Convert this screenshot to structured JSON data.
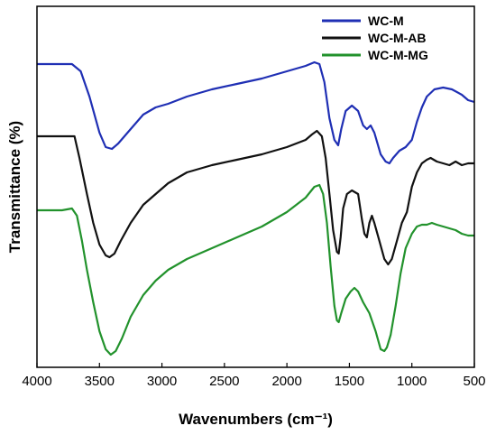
{
  "chart_data": {
    "type": "line",
    "title": "",
    "xlabel": "Wavenumbers (cm⁻¹)",
    "ylabel": "Transmittance (%)",
    "xlim": [
      4000,
      500
    ],
    "x_reversed": true,
    "ylim": [
      0,
      100
    ],
    "y_ticks_shown": false,
    "x_ticks": [
      4000,
      3500,
      3000,
      2500,
      2000,
      1500,
      1000,
      500
    ],
    "grid": false,
    "legend_position": "top-right",
    "series": [
      {
        "name": "WC-M",
        "color": "#1f2fb4",
        "points": [
          [
            4000,
            84
          ],
          [
            3800,
            84
          ],
          [
            3720,
            84
          ],
          [
            3650,
            82
          ],
          [
            3580,
            75
          ],
          [
            3500,
            65
          ],
          [
            3450,
            61
          ],
          [
            3400,
            60.5
          ],
          [
            3350,
            62
          ],
          [
            3250,
            66
          ],
          [
            3150,
            70
          ],
          [
            3050,
            72
          ],
          [
            2950,
            73
          ],
          [
            2800,
            75
          ],
          [
            2600,
            77
          ],
          [
            2400,
            78.5
          ],
          [
            2200,
            80
          ],
          [
            2000,
            82
          ],
          [
            1850,
            83.5
          ],
          [
            1780,
            84.5
          ],
          [
            1740,
            84
          ],
          [
            1700,
            79
          ],
          [
            1660,
            69
          ],
          [
            1620,
            63
          ],
          [
            1590,
            61.5
          ],
          [
            1565,
            66
          ],
          [
            1530,
            71
          ],
          [
            1480,
            72.5
          ],
          [
            1430,
            71
          ],
          [
            1390,
            67
          ],
          [
            1360,
            66
          ],
          [
            1330,
            67
          ],
          [
            1300,
            65
          ],
          [
            1250,
            59
          ],
          [
            1210,
            57
          ],
          [
            1180,
            56.5
          ],
          [
            1150,
            58
          ],
          [
            1100,
            60
          ],
          [
            1050,
            61
          ],
          [
            1000,
            63
          ],
          [
            960,
            68
          ],
          [
            920,
            72
          ],
          [
            880,
            75
          ],
          [
            820,
            77
          ],
          [
            750,
            77.5
          ],
          [
            680,
            77
          ],
          [
            600,
            75.5
          ],
          [
            550,
            74
          ],
          [
            500,
            73.5
          ]
        ]
      },
      {
        "name": "WC-M-AB",
        "color": "#111111",
        "points": [
          [
            4000,
            64
          ],
          [
            3800,
            64
          ],
          [
            3700,
            64
          ],
          [
            3660,
            58
          ],
          [
            3600,
            48
          ],
          [
            3550,
            40
          ],
          [
            3500,
            34
          ],
          [
            3450,
            31
          ],
          [
            3420,
            30.5
          ],
          [
            3380,
            31.5
          ],
          [
            3330,
            35
          ],
          [
            3250,
            40
          ],
          [
            3150,
            45
          ],
          [
            3050,
            48
          ],
          [
            2950,
            51
          ],
          [
            2800,
            54
          ],
          [
            2600,
            56
          ],
          [
            2400,
            57.5
          ],
          [
            2200,
            59
          ],
          [
            2000,
            61
          ],
          [
            1850,
            63
          ],
          [
            1800,
            64.5
          ],
          [
            1760,
            65.5
          ],
          [
            1720,
            64
          ],
          [
            1690,
            58
          ],
          [
            1660,
            48
          ],
          [
            1630,
            38
          ],
          [
            1600,
            32
          ],
          [
            1585,
            31.5
          ],
          [
            1570,
            36
          ],
          [
            1550,
            44
          ],
          [
            1520,
            48
          ],
          [
            1480,
            49
          ],
          [
            1430,
            48
          ],
          [
            1400,
            41
          ],
          [
            1380,
            37
          ],
          [
            1360,
            36
          ],
          [
            1340,
            40
          ],
          [
            1320,
            42
          ],
          [
            1300,
            40
          ],
          [
            1260,
            35
          ],
          [
            1220,
            30
          ],
          [
            1190,
            28.5
          ],
          [
            1160,
            30
          ],
          [
            1120,
            35
          ],
          [
            1080,
            40
          ],
          [
            1040,
            43
          ],
          [
            1000,
            50
          ],
          [
            960,
            54
          ],
          [
            920,
            56.5
          ],
          [
            880,
            57.5
          ],
          [
            850,
            58
          ],
          [
            800,
            57
          ],
          [
            750,
            56.5
          ],
          [
            700,
            56
          ],
          [
            650,
            57
          ],
          [
            600,
            56
          ],
          [
            550,
            56.5
          ],
          [
            500,
            56.5
          ]
        ]
      },
      {
        "name": "WC-M-MG",
        "color": "#22922c",
        "points": [
          [
            4000,
            43.5
          ],
          [
            3800,
            43.5
          ],
          [
            3720,
            44
          ],
          [
            3680,
            42
          ],
          [
            3640,
            35
          ],
          [
            3600,
            27
          ],
          [
            3550,
            18
          ],
          [
            3500,
            10
          ],
          [
            3450,
            5
          ],
          [
            3410,
            3.5
          ],
          [
            3370,
            4.5
          ],
          [
            3320,
            8
          ],
          [
            3250,
            14
          ],
          [
            3150,
            20
          ],
          [
            3050,
            24
          ],
          [
            2950,
            27
          ],
          [
            2800,
            30
          ],
          [
            2600,
            33
          ],
          [
            2400,
            36
          ],
          [
            2200,
            39
          ],
          [
            2000,
            43
          ],
          [
            1850,
            47
          ],
          [
            1780,
            50
          ],
          [
            1740,
            50.5
          ],
          [
            1710,
            48
          ],
          [
            1680,
            40
          ],
          [
            1650,
            28
          ],
          [
            1620,
            17
          ],
          [
            1600,
            13
          ],
          [
            1585,
            12.5
          ],
          [
            1565,
            15
          ],
          [
            1530,
            19
          ],
          [
            1490,
            21
          ],
          [
            1460,
            22
          ],
          [
            1430,
            21
          ],
          [
            1390,
            18
          ],
          [
            1340,
            15
          ],
          [
            1290,
            10
          ],
          [
            1250,
            5
          ],
          [
            1220,
            4.5
          ],
          [
            1200,
            5.5
          ],
          [
            1170,
            9
          ],
          [
            1130,
            17
          ],
          [
            1090,
            26
          ],
          [
            1050,
            33
          ],
          [
            1000,
            37
          ],
          [
            960,
            39
          ],
          [
            920,
            39.5
          ],
          [
            880,
            39.5
          ],
          [
            840,
            40
          ],
          [
            800,
            39.5
          ],
          [
            750,
            39
          ],
          [
            700,
            38.5
          ],
          [
            650,
            38
          ],
          [
            600,
            37
          ],
          [
            550,
            36.5
          ],
          [
            500,
            36.5
          ]
        ]
      }
    ]
  }
}
